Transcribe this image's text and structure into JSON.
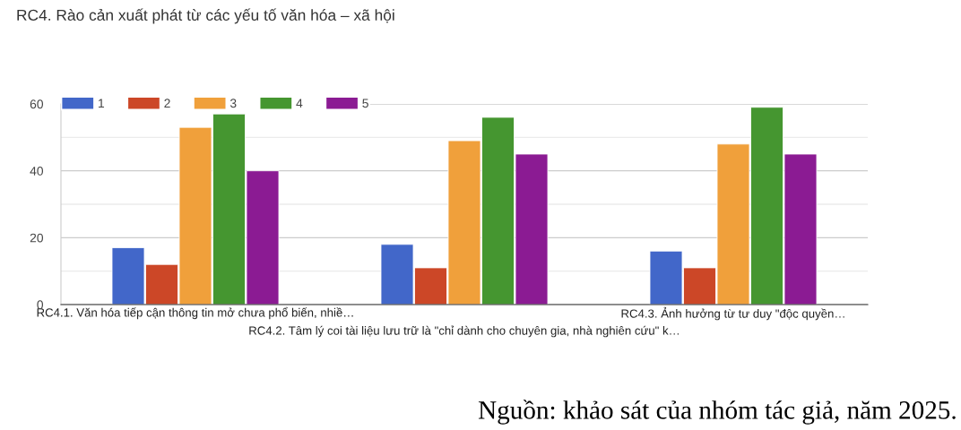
{
  "chart_data": {
    "type": "bar",
    "title": "RC4. Rào cản xuất phát từ các yếu tố văn hóa – xã hội",
    "categories": [
      "RC4.1. Văn hóa tiếp cận thông tin mở chưa phổ biến, nhiề…",
      "RC4.2. Tâm lý coi tài liệu lưu trữ là \"chỉ dành cho chuyên gia, nhà nghiên cứu\" k…",
      "RC4.3. Ảnh hưởng từ tư duy \"độc quyền…"
    ],
    "series": [
      {
        "name": "1",
        "color": "#4267c9",
        "values": [
          17,
          18,
          16
        ]
      },
      {
        "name": "2",
        "color": "#cc4727",
        "values": [
          12,
          11,
          11
        ]
      },
      {
        "name": "3",
        "color": "#f0a03b",
        "values": [
          53,
          49,
          48
        ]
      },
      {
        "name": "4",
        "color": "#459630",
        "values": [
          57,
          56,
          59
        ]
      },
      {
        "name": "5",
        "color": "#8b1b93",
        "values": [
          40,
          45,
          45
        ]
      }
    ],
    "ylim": [
      0,
      60
    ],
    "yticks": [
      0,
      {
        "value": 10,
        "label": null
      },
      20,
      {
        "value": 30,
        "label": null
      },
      40,
      {
        "value": 50,
        "label": null
      },
      60
    ],
    "grid": "y",
    "legend": "top left",
    "annotations": [
      "Nguồn: khảo sát của nhóm tác giả, năm 2025."
    ]
  }
}
